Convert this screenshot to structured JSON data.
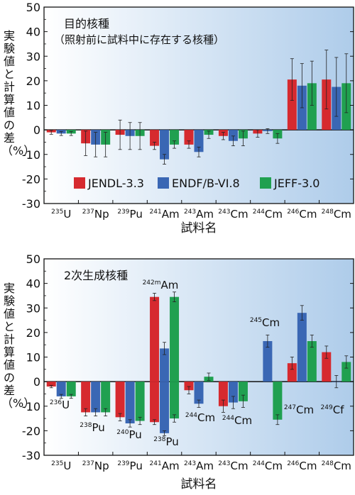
{
  "figure": {
    "ylabel": "実験値と計算値の差（%）",
    "xlabel": "試料名"
  },
  "chart_data": [
    {
      "type": "bar",
      "title": "目的核種",
      "subtitle": "（照射前に試料中に存在する核種）",
      "xlabel": "試料名",
      "ylabel": "実験値と計算値の差（%）",
      "ylim": [
        -30,
        50
      ],
      "yticks": [
        -30,
        -20,
        -10,
        0,
        10,
        20,
        30,
        40,
        50
      ],
      "grid": false,
      "legend_position": "bottom-center",
      "categories": [
        {
          "mass": "235",
          "sym": "U"
        },
        {
          "mass": "237",
          "sym": "Np"
        },
        {
          "mass": "239",
          "sym": "Pu"
        },
        {
          "mass": "241",
          "sym": "Am"
        },
        {
          "mass": "243",
          "sym": "Am"
        },
        {
          "mass": "243",
          "sym": "Cm"
        },
        {
          "mass": "244",
          "sym": "Cm"
        },
        {
          "mass": "246",
          "sym": "Cm"
        },
        {
          "mass": "248",
          "sym": "Cm"
        }
      ],
      "series": [
        {
          "name": "JENDL-3.3",
          "color": "#d62a2f",
          "values": [
            -1,
            -5.5,
            -2,
            -6.5,
            -6,
            -2.5,
            -1.5,
            20.5,
            20.5
          ],
          "errors": [
            0.8,
            5,
            6,
            1.5,
            1.5,
            1.5,
            1.5,
            8.5,
            12
          ]
        },
        {
          "name": "ENDF/B-VI.8",
          "color": "#3a67b4",
          "values": [
            -1.5,
            -6,
            -2.5,
            -12,
            -9,
            -4.5,
            -0.5,
            18,
            17.5
          ],
          "errors": [
            0.8,
            5,
            5.5,
            2,
            2,
            2,
            1,
            9,
            12
          ]
        },
        {
          "name": "JEFF-3.0",
          "color": "#20a050",
          "values": [
            -1.5,
            -6,
            -2.5,
            -6,
            -2,
            -3.5,
            -3.5,
            19,
            19
          ],
          "errors": [
            0.8,
            5,
            5.5,
            1.5,
            1.5,
            3,
            2,
            9,
            12
          ]
        }
      ]
    },
    {
      "type": "bar",
      "title": "2次生成核種",
      "xlabel": "試料名",
      "ylabel": "実験値と計算値の差（%）",
      "ylim": [
        -30,
        50
      ],
      "yticks": [
        -30,
        -20,
        -10,
        0,
        10,
        20,
        30,
        40,
        50
      ],
      "grid": false,
      "categories": [
        {
          "mass": "235",
          "sym": "U"
        },
        {
          "mass": "237",
          "sym": "Np"
        },
        {
          "mass": "239",
          "sym": "Pu"
        },
        {
          "mass": "241",
          "sym": "Am"
        },
        {
          "mass": "243",
          "sym": "Am"
        },
        {
          "mass": "243",
          "sym": "Cm"
        },
        {
          "mass": "244",
          "sym": "Cm"
        },
        {
          "mass": "246",
          "sym": "Cm"
        },
        {
          "mass": "248",
          "sym": "Cm"
        }
      ],
      "series": [
        {
          "name": "JENDL-3.3",
          "color": "#d62a2f",
          "values": [
            -2,
            -12.5,
            -14.5,
            -16.5,
            -3.5,
            -10,
            null,
            7.5,
            12
          ],
          "errors": [
            0.5,
            1.5,
            1.5,
            1,
            1.5,
            2.5,
            null,
            2.5,
            2.5
          ],
          "extra": {
            "index": 3,
            "value": 34.5,
            "error": 1.5
          }
        },
        {
          "name": "ENDF/B-VI.8",
          "color": "#3a67b4",
          "values": [
            -6,
            -12.5,
            -17,
            -21,
            -9,
            -8.5,
            16.5,
            28,
            0
          ],
          "errors": [
            0.8,
            1.5,
            1.5,
            1,
            1.5,
            2.5,
            2.5,
            3,
            2.5
          ],
          "extra": {
            "index": 3,
            "value": 13.5,
            "error": 2.5
          }
        },
        {
          "name": "JEFF-3.0",
          "color": "#20a050",
          "values": [
            -6,
            -12.5,
            -16,
            -15,
            2,
            -8,
            -15.5,
            16.5,
            8
          ],
          "errors": [
            0.8,
            1.5,
            1.5,
            1.5,
            1.5,
            2.5,
            2,
            2.5,
            2.5
          ],
          "extra": {
            "index": 3,
            "value": 34.5,
            "error": 2
          }
        }
      ],
      "annotations": [
        {
          "mass": "236",
          "sym": "U"
        },
        {
          "mass": "238",
          "sym": "Pu"
        },
        {
          "mass": "240",
          "sym": "Pu"
        },
        {
          "mass": "242m",
          "sym": "Am"
        },
        {
          "mass": "238",
          "sym": "Pu"
        },
        {
          "mass": "244",
          "sym": "Cm"
        },
        {
          "mass": "244",
          "sym": "Cm"
        },
        {
          "mass": "245",
          "sym": "Cm"
        },
        {
          "mass": "247",
          "sym": "Cm"
        },
        {
          "mass": "249",
          "sym": "Cf"
        }
      ]
    }
  ]
}
